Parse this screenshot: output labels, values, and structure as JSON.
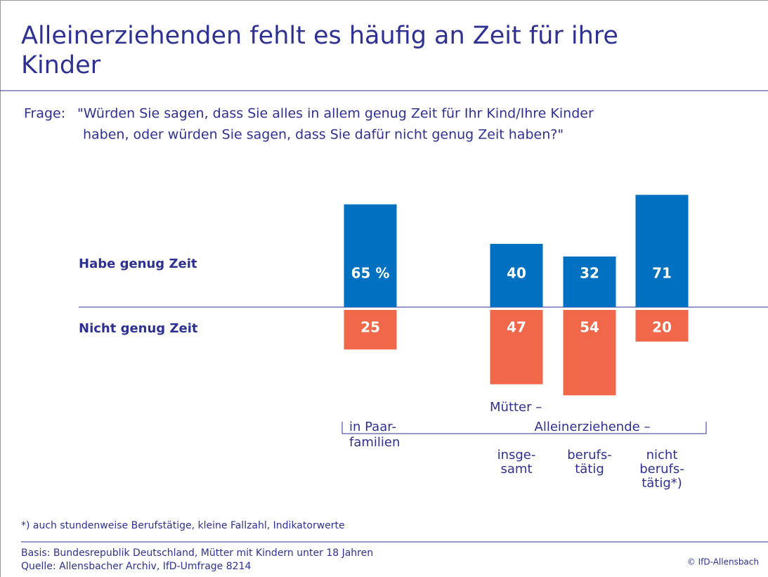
{
  "chart_data": {
    "type": "diverging-bar",
    "title": "Alleinerziehenden fehlt es häufig an Zeit für ihre Kinder",
    "question_label": "Frage:",
    "question": [
      "\"Würden Sie sagen, dass Sie alles in allem genug Zeit für Ihr Kind/Ihre Kinder",
      "haben, oder würden Sie sagen, dass Sie dafür nicht genug Zeit haben?\""
    ],
    "categories": [
      [
        "in Paar-",
        "familien"
      ],
      [
        "insge-",
        "samt"
      ],
      [
        "berufs-",
        "tätig"
      ],
      [
        "nicht",
        "berufs-",
        "tätig*)"
      ]
    ],
    "group_labels": [
      "Mütter –",
      "Alleinerziehende –"
    ],
    "series": [
      {
        "name": "Habe genug Zeit",
        "color": "#0070c0",
        "values": [
          65,
          40,
          32,
          71
        ],
        "value_labels": [
          "65 %",
          "40",
          "32",
          "71"
        ]
      },
      {
        "name": "Nicht genug Zeit",
        "color": "#f0674a",
        "values": [
          25,
          47,
          54,
          20
        ]
      }
    ],
    "footnote": "*) auch stundenweise Berufstätige, kleine Fallzahl, Indikatorwerte",
    "basis": "Basis: Bundesrepublik Deutschland, Mütter mit Kindern unter 18 Jahren",
    "source": "Quelle: Allensbacher Archiv, IfD-Umfrage 8214",
    "copyright": "© IfD-Allensbach"
  }
}
